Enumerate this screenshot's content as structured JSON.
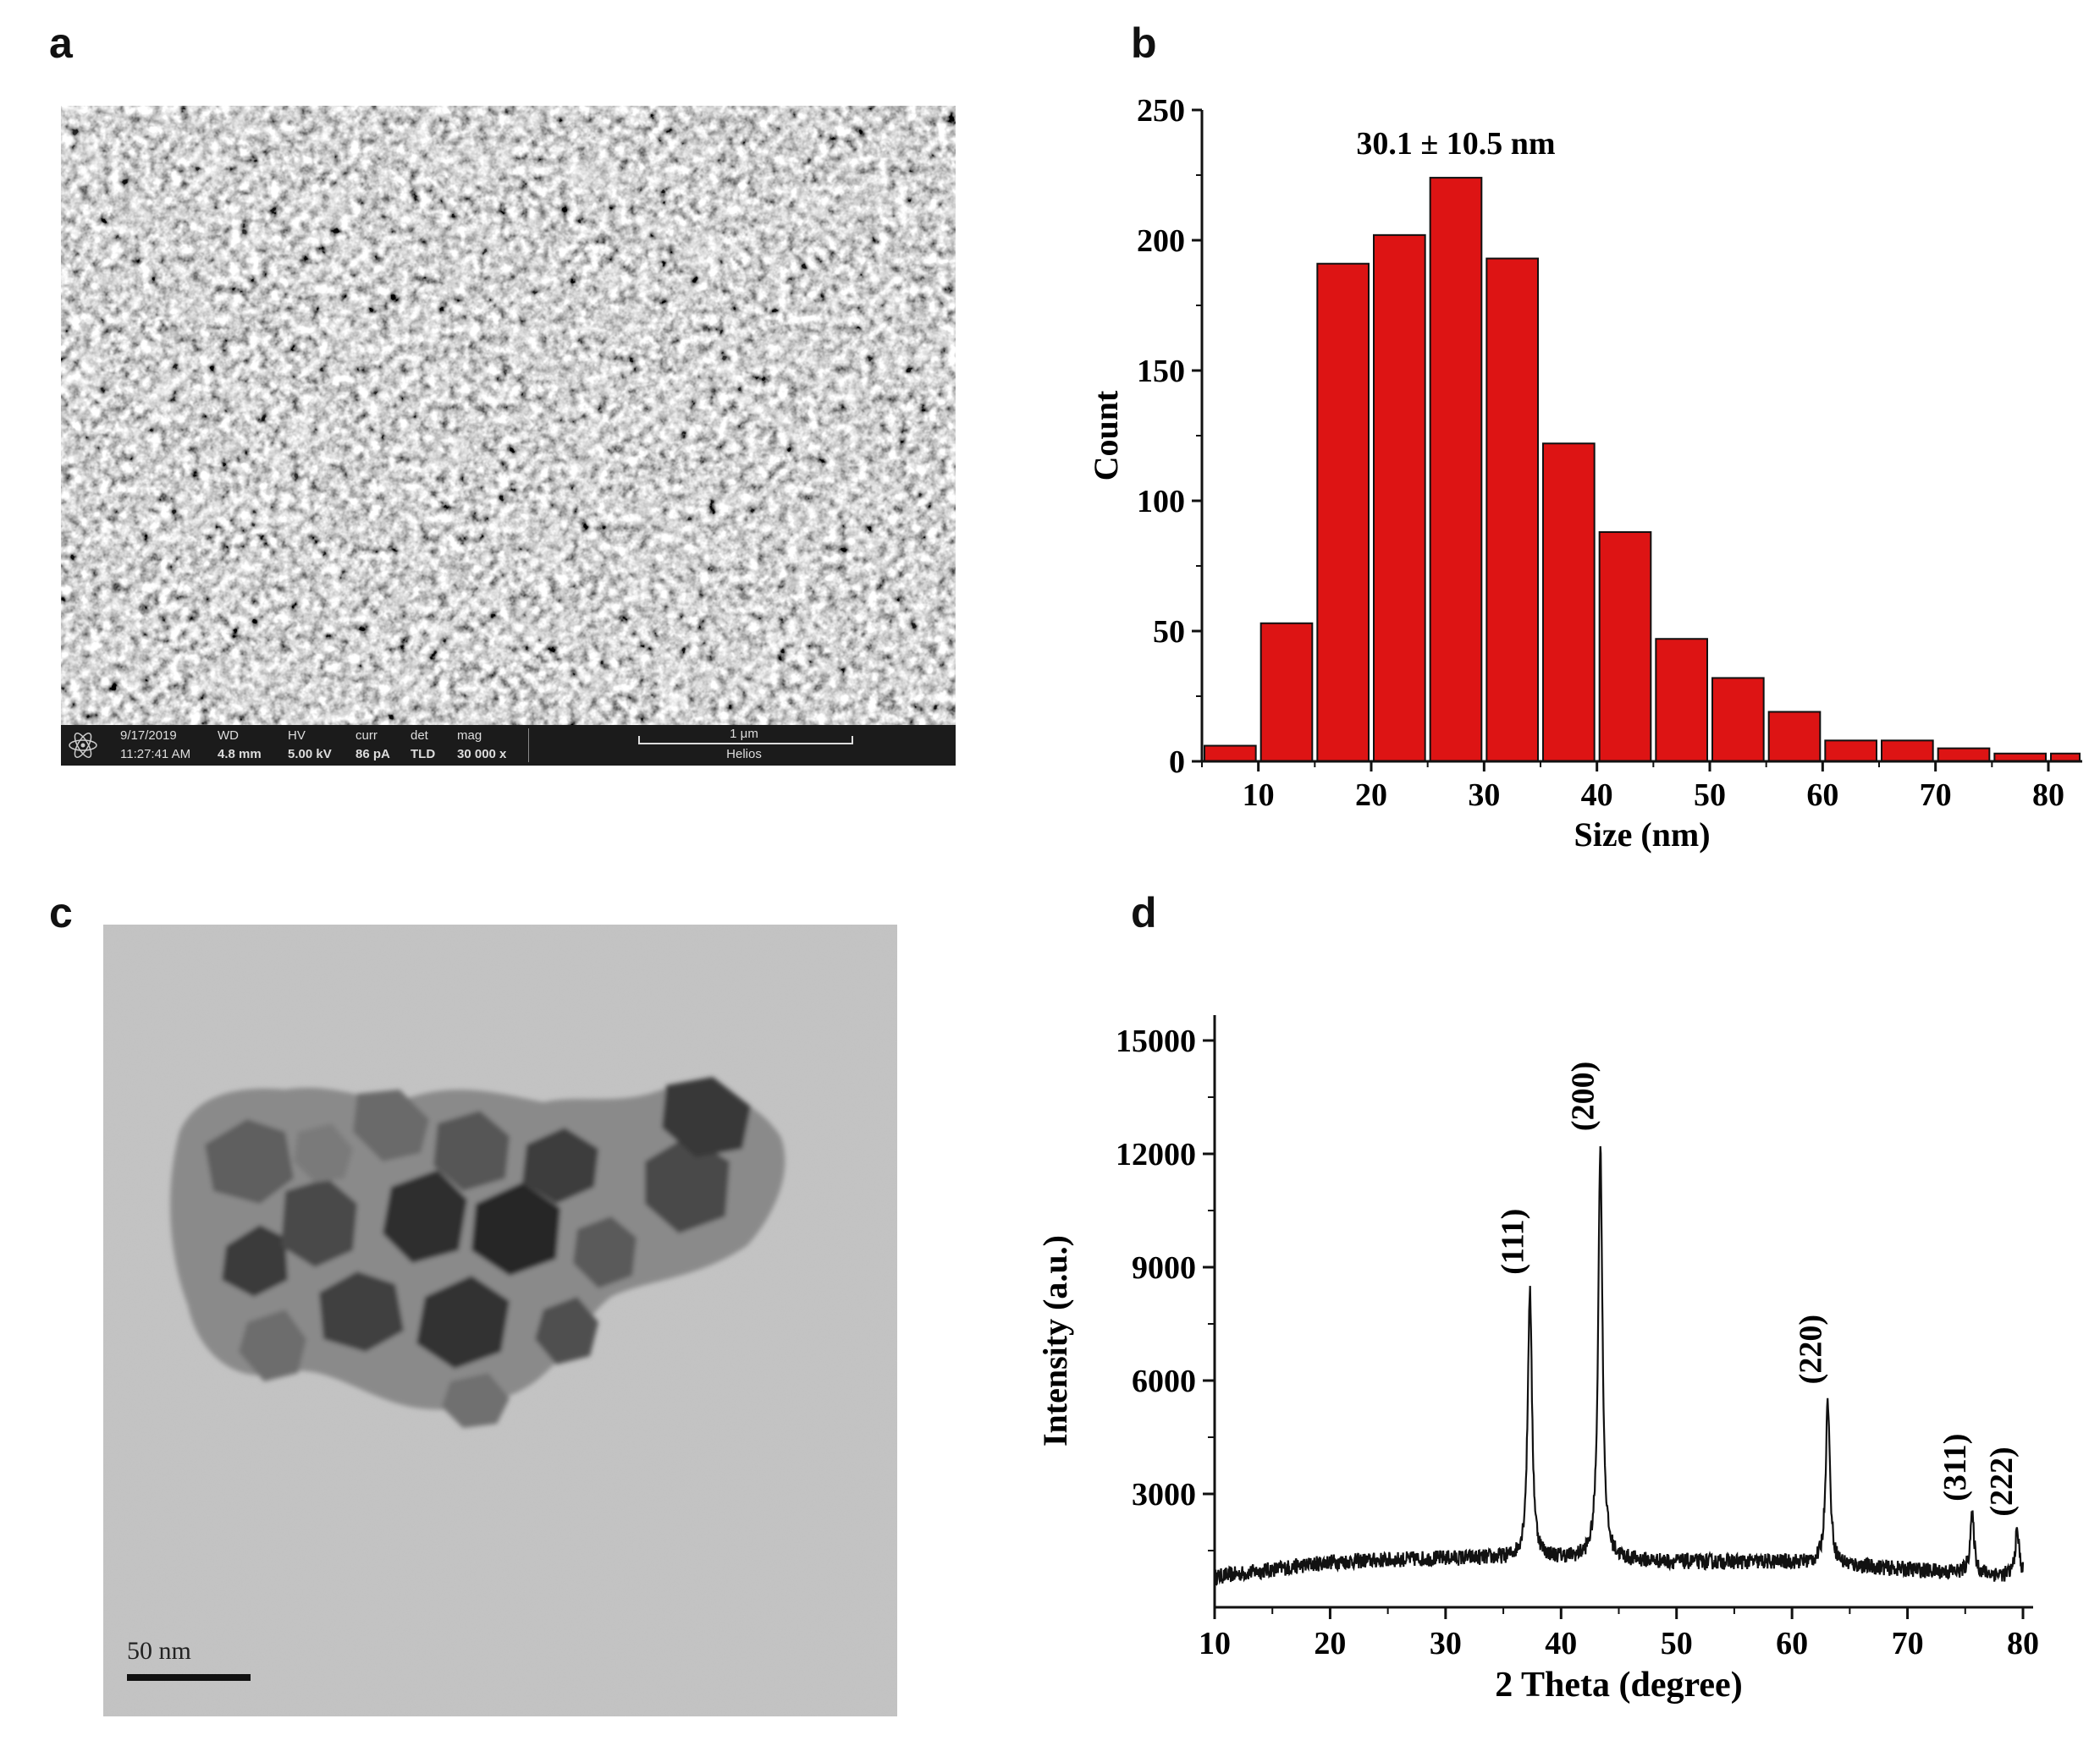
{
  "panels": {
    "a": "a",
    "b": "b",
    "c": "c",
    "d": "d"
  },
  "sem_databar": {
    "date": "9/17/2019",
    "time": "11:27:41 AM",
    "wd_label": "WD",
    "wd_value": "4.8 mm",
    "hv_label": "HV",
    "hv_value": "5.00 kV",
    "curr_label": "curr",
    "curr_value": "86 pA",
    "det_label": "det",
    "det_value": "TLD",
    "mag_label": "mag",
    "mag_value": "30 000 x",
    "scale_label": "1 μm",
    "instrument": "Helios"
  },
  "tem": {
    "scale_label": "50 nm"
  },
  "chart_data": [
    {
      "type": "bar",
      "panel": "b",
      "xlabel": "Size (nm)",
      "ylabel": "Count",
      "annotation": "30.1 ± 10.5 nm",
      "xlim": [
        5,
        83
      ],
      "ylim": [
        0,
        250
      ],
      "xticks": [
        10,
        20,
        30,
        40,
        50,
        60,
        70,
        80
      ],
      "yticks": [
        0,
        50,
        100,
        150,
        200,
        250
      ],
      "bin_width": 5,
      "bin_centers": [
        7.5,
        12.5,
        17.5,
        22.5,
        27.5,
        32.5,
        37.5,
        42.5,
        47.5,
        52.5,
        57.5,
        62.5,
        67.5,
        72.5,
        77.5,
        82.5
      ],
      "values": [
        6,
        53,
        191,
        202,
        224,
        193,
        122,
        88,
        47,
        32,
        19,
        8,
        8,
        5,
        3,
        3
      ],
      "bar_color": "#dd1414"
    },
    {
      "type": "line",
      "panel": "d",
      "xlabel": "2 Theta (degree)",
      "ylabel": "Intensity (a.u.)",
      "xlim": [
        10,
        80
      ],
      "ylim": [
        0,
        15000
      ],
      "xticks": [
        10,
        20,
        30,
        40,
        50,
        60,
        70,
        80
      ],
      "yticks": [
        3000,
        6000,
        9000,
        12000,
        15000
      ],
      "baseline": [
        [
          10,
          800
        ],
        [
          20,
          1200
        ],
        [
          30,
          1300
        ],
        [
          40,
          1300
        ],
        [
          50,
          1200
        ],
        [
          60,
          1200
        ],
        [
          70,
          1000
        ],
        [
          80,
          800
        ]
      ],
      "peaks": [
        {
          "label": "(111)",
          "x": 37.3,
          "y": 8400
        },
        {
          "label": "(200)",
          "x": 43.4,
          "y": 12200
        },
        {
          "label": "(220)",
          "x": 63.1,
          "y": 5500
        },
        {
          "label": "(311)",
          "x": 75.6,
          "y": 2400
        },
        {
          "label": "(222)",
          "x": 79.5,
          "y": 2000
        }
      ],
      "line_color": "#111111"
    }
  ]
}
